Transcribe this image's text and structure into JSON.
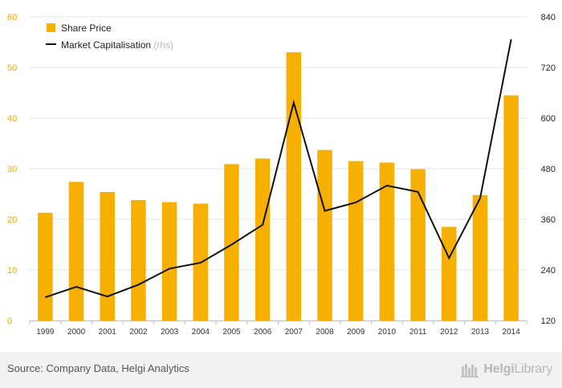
{
  "chart_data": {
    "type": "bar",
    "categories": [
      "1999",
      "2000",
      "2001",
      "2002",
      "2003",
      "2004",
      "2005",
      "2006",
      "2007",
      "2008",
      "2009",
      "2010",
      "2011",
      "2012",
      "2013",
      "2014"
    ],
    "series": [
      {
        "name": "Share Price",
        "type": "bar",
        "axis": "left",
        "color": "#f7b000",
        "values": [
          21.3,
          27.4,
          25.4,
          23.8,
          23.4,
          23.1,
          30.9,
          32.0,
          53.0,
          33.7,
          31.5,
          31.2,
          29.9,
          18.5,
          24.8,
          44.5
        ]
      },
      {
        "name": "Market Capitalisation",
        "name_suffix": "(rhs)",
        "type": "line",
        "axis": "right",
        "color": "#111111",
        "values": [
          175,
          200,
          177,
          205,
          243,
          257,
          300,
          347,
          637,
          380,
          400,
          440,
          425,
          268,
          410,
          787
        ]
      }
    ],
    "y_left": {
      "min": 0,
      "max": 60,
      "ticks": [
        0,
        10,
        20,
        30,
        40,
        50,
        60
      ]
    },
    "y_right": {
      "min": 120,
      "max": 840,
      "ticks": [
        120,
        240,
        360,
        480,
        600,
        720,
        840
      ]
    },
    "grid": true,
    "legend_position": "top-left"
  },
  "footer": {
    "source": "Source: Company Data, Helgi Analytics",
    "brand_prefix": "Helgi",
    "brand_suffix": "Library"
  }
}
